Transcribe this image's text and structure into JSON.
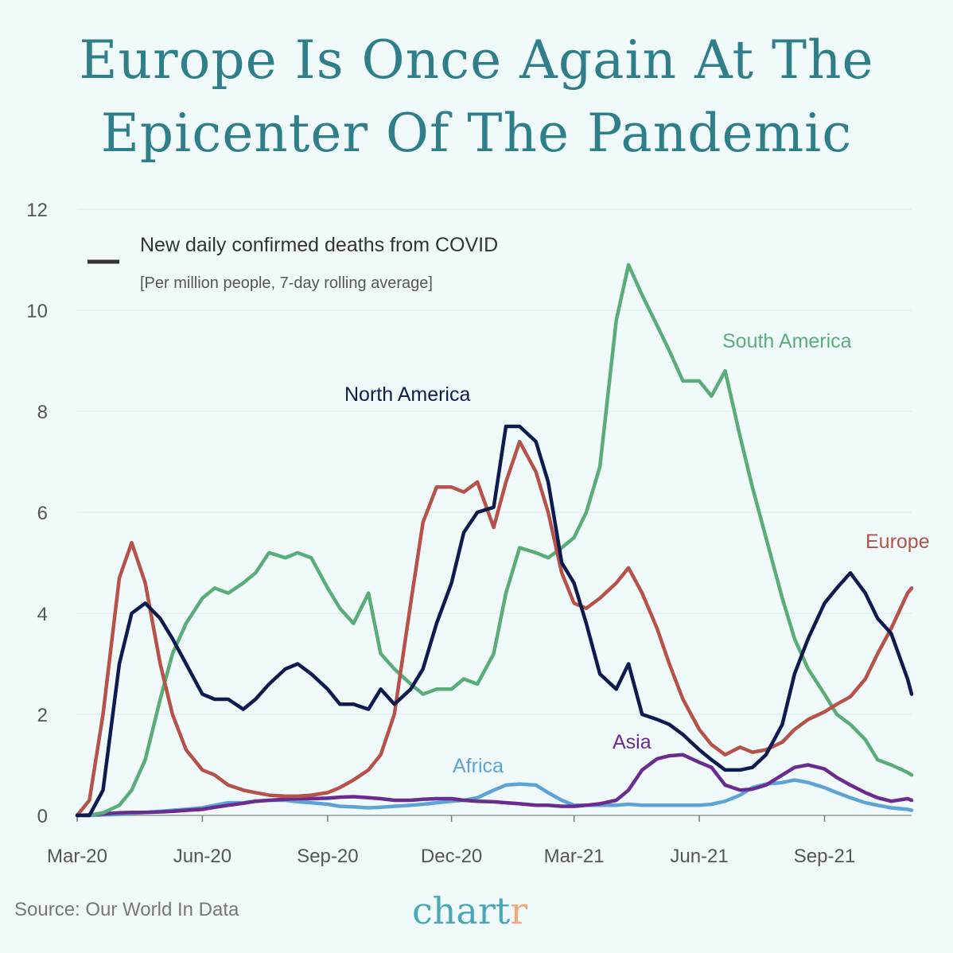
{
  "title": "Europe Is Once Again At The Epicenter Of The Pandemic",
  "source": "Source: Our World In Data",
  "logo": {
    "main": "chart",
    "accent": "r"
  },
  "chart_data": {
    "type": "line",
    "title": "Europe Is Once Again At The Epicenter Of The Pandemic",
    "legend_title": "New daily confirmed deaths from COVID",
    "legend_subtitle": "[Per million people, 7-day rolling average]",
    "legend_placement": "top-left",
    "grid": true,
    "ylim": [
      0,
      12
    ],
    "yticks": [
      "0",
      "2",
      "4",
      "6",
      "8",
      "10",
      "12"
    ],
    "xlim": [
      "2020-03-01",
      "2021-11-04"
    ],
    "xticks": [
      {
        "date": "2020-03-01",
        "label": "Mar-20"
      },
      {
        "date": "2020-06-01",
        "label": "Jun-20"
      },
      {
        "date": "2020-09-01",
        "label": "Sep-20"
      },
      {
        "date": "2020-12-01",
        "label": "Dec-20"
      },
      {
        "date": "2021-03-01",
        "label": "Mar-21"
      },
      {
        "date": "2021-06-01",
        "label": "Jun-21"
      },
      {
        "date": "2021-09-01",
        "label": "Sep-21"
      }
    ],
    "x": [
      "2020-03-01",
      "2020-03-10",
      "2020-03-20",
      "2020-04-01",
      "2020-04-10",
      "2020-04-20",
      "2020-05-01",
      "2020-05-10",
      "2020-05-20",
      "2020-06-01",
      "2020-06-10",
      "2020-06-20",
      "2020-07-01",
      "2020-07-10",
      "2020-07-20",
      "2020-08-01",
      "2020-08-10",
      "2020-08-20",
      "2020-09-01",
      "2020-09-10",
      "2020-09-20",
      "2020-10-01",
      "2020-10-10",
      "2020-10-20",
      "2020-11-01",
      "2020-11-10",
      "2020-11-20",
      "2020-12-01",
      "2020-12-10",
      "2020-12-20",
      "2021-01-01",
      "2021-01-10",
      "2021-01-20",
      "2021-02-01",
      "2021-02-10",
      "2021-02-20",
      "2021-03-01",
      "2021-03-10",
      "2021-03-20",
      "2021-04-01",
      "2021-04-10",
      "2021-04-20",
      "2021-05-01",
      "2021-05-10",
      "2021-05-20",
      "2021-06-01",
      "2021-06-10",
      "2021-06-20",
      "2021-07-01",
      "2021-07-10",
      "2021-07-20",
      "2021-08-01",
      "2021-08-10",
      "2021-08-20",
      "2021-09-01",
      "2021-09-10",
      "2021-09-20",
      "2021-10-01",
      "2021-10-10",
      "2021-10-20",
      "2021-11-01",
      "2021-11-04"
    ],
    "series": [
      {
        "name": "Africa",
        "color": "#5ea3d6",
        "values": [
          0,
          0,
          0.01,
          0.02,
          0.04,
          0.06,
          0.08,
          0.1,
          0.12,
          0.15,
          0.2,
          0.25,
          0.25,
          0.28,
          0.3,
          0.3,
          0.27,
          0.25,
          0.22,
          0.18,
          0.17,
          0.15,
          0.16,
          0.18,
          0.2,
          0.22,
          0.25,
          0.28,
          0.3,
          0.35,
          0.5,
          0.6,
          0.62,
          0.6,
          0.45,
          0.3,
          0.2,
          0.2,
          0.2,
          0.2,
          0.22,
          0.2,
          0.2,
          0.2,
          0.2,
          0.2,
          0.22,
          0.28,
          0.4,
          0.55,
          0.62,
          0.65,
          0.7,
          0.65,
          0.55,
          0.45,
          0.35,
          0.25,
          0.2,
          0.15,
          0.12,
          0.1
        ]
      },
      {
        "name": "Asia",
        "color": "#6b2c91",
        "values": [
          0,
          0.01,
          0.03,
          0.05,
          0.06,
          0.06,
          0.07,
          0.08,
          0.1,
          0.12,
          0.16,
          0.2,
          0.24,
          0.28,
          0.3,
          0.32,
          0.33,
          0.33,
          0.34,
          0.36,
          0.37,
          0.35,
          0.33,
          0.3,
          0.3,
          0.32,
          0.33,
          0.33,
          0.3,
          0.28,
          0.27,
          0.25,
          0.23,
          0.2,
          0.2,
          0.18,
          0.18,
          0.2,
          0.23,
          0.3,
          0.5,
          0.9,
          1.12,
          1.18,
          1.2,
          1.05,
          0.95,
          0.6,
          0.5,
          0.52,
          0.6,
          0.8,
          0.95,
          1.0,
          0.92,
          0.75,
          0.6,
          0.45,
          0.35,
          0.28,
          0.33,
          0.3
        ]
      },
      {
        "name": "South America",
        "color": "#5aad78",
        "values": [
          0,
          0,
          0.05,
          0.2,
          0.5,
          1.1,
          2.3,
          3.2,
          3.8,
          4.3,
          4.5,
          4.4,
          4.6,
          4.8,
          5.2,
          5.1,
          5.2,
          5.1,
          4.5,
          4.1,
          3.8,
          4.4,
          3.2,
          2.9,
          2.6,
          2.4,
          2.5,
          2.5,
          2.7,
          2.6,
          3.2,
          4.4,
          5.3,
          5.2,
          5.1,
          5.3,
          5.5,
          6.0,
          6.9,
          9.8,
          10.9,
          10.3,
          9.7,
          9.2,
          8.6,
          8.6,
          8.3,
          8.8,
          7.5,
          6.5,
          5.5,
          4.3,
          3.5,
          2.9,
          2.4,
          2.0,
          1.8,
          1.5,
          1.1,
          1.0,
          0.85,
          0.8
        ]
      },
      {
        "name": "Europe",
        "color": "#b5524a",
        "values": [
          0,
          0.3,
          2.0,
          4.7,
          5.4,
          4.6,
          3.0,
          2.0,
          1.3,
          0.9,
          0.8,
          0.6,
          0.5,
          0.45,
          0.4,
          0.38,
          0.38,
          0.4,
          0.45,
          0.55,
          0.7,
          0.9,
          1.2,
          2.0,
          4.2,
          5.8,
          6.5,
          6.5,
          6.4,
          6.6,
          5.7,
          6.6,
          7.4,
          6.8,
          6.0,
          4.8,
          4.2,
          4.1,
          4.3,
          4.6,
          4.9,
          4.4,
          3.7,
          3.0,
          2.3,
          1.7,
          1.4,
          1.2,
          1.35,
          1.25,
          1.3,
          1.45,
          1.7,
          1.9,
          2.05,
          2.2,
          2.35,
          2.7,
          3.2,
          3.7,
          4.4,
          4.5
        ]
      },
      {
        "name": "North America",
        "color": "#0d1b4f",
        "values": [
          0,
          0,
          0.5,
          3.0,
          4.0,
          4.2,
          3.9,
          3.5,
          3.0,
          2.4,
          2.3,
          2.3,
          2.1,
          2.3,
          2.6,
          2.9,
          3.0,
          2.8,
          2.5,
          2.2,
          2.2,
          2.1,
          2.5,
          2.2,
          2.5,
          2.9,
          3.8,
          4.6,
          5.6,
          6.0,
          6.1,
          7.7,
          7.7,
          7.4,
          6.6,
          5.0,
          4.6,
          3.8,
          2.8,
          2.5,
          3.0,
          2.0,
          1.9,
          1.8,
          1.6,
          1.3,
          1.1,
          0.9,
          0.9,
          0.95,
          1.2,
          1.8,
          2.8,
          3.5,
          4.2,
          4.5,
          4.8,
          4.4,
          3.9,
          3.6,
          2.7,
          2.4
        ]
      }
    ]
  }
}
